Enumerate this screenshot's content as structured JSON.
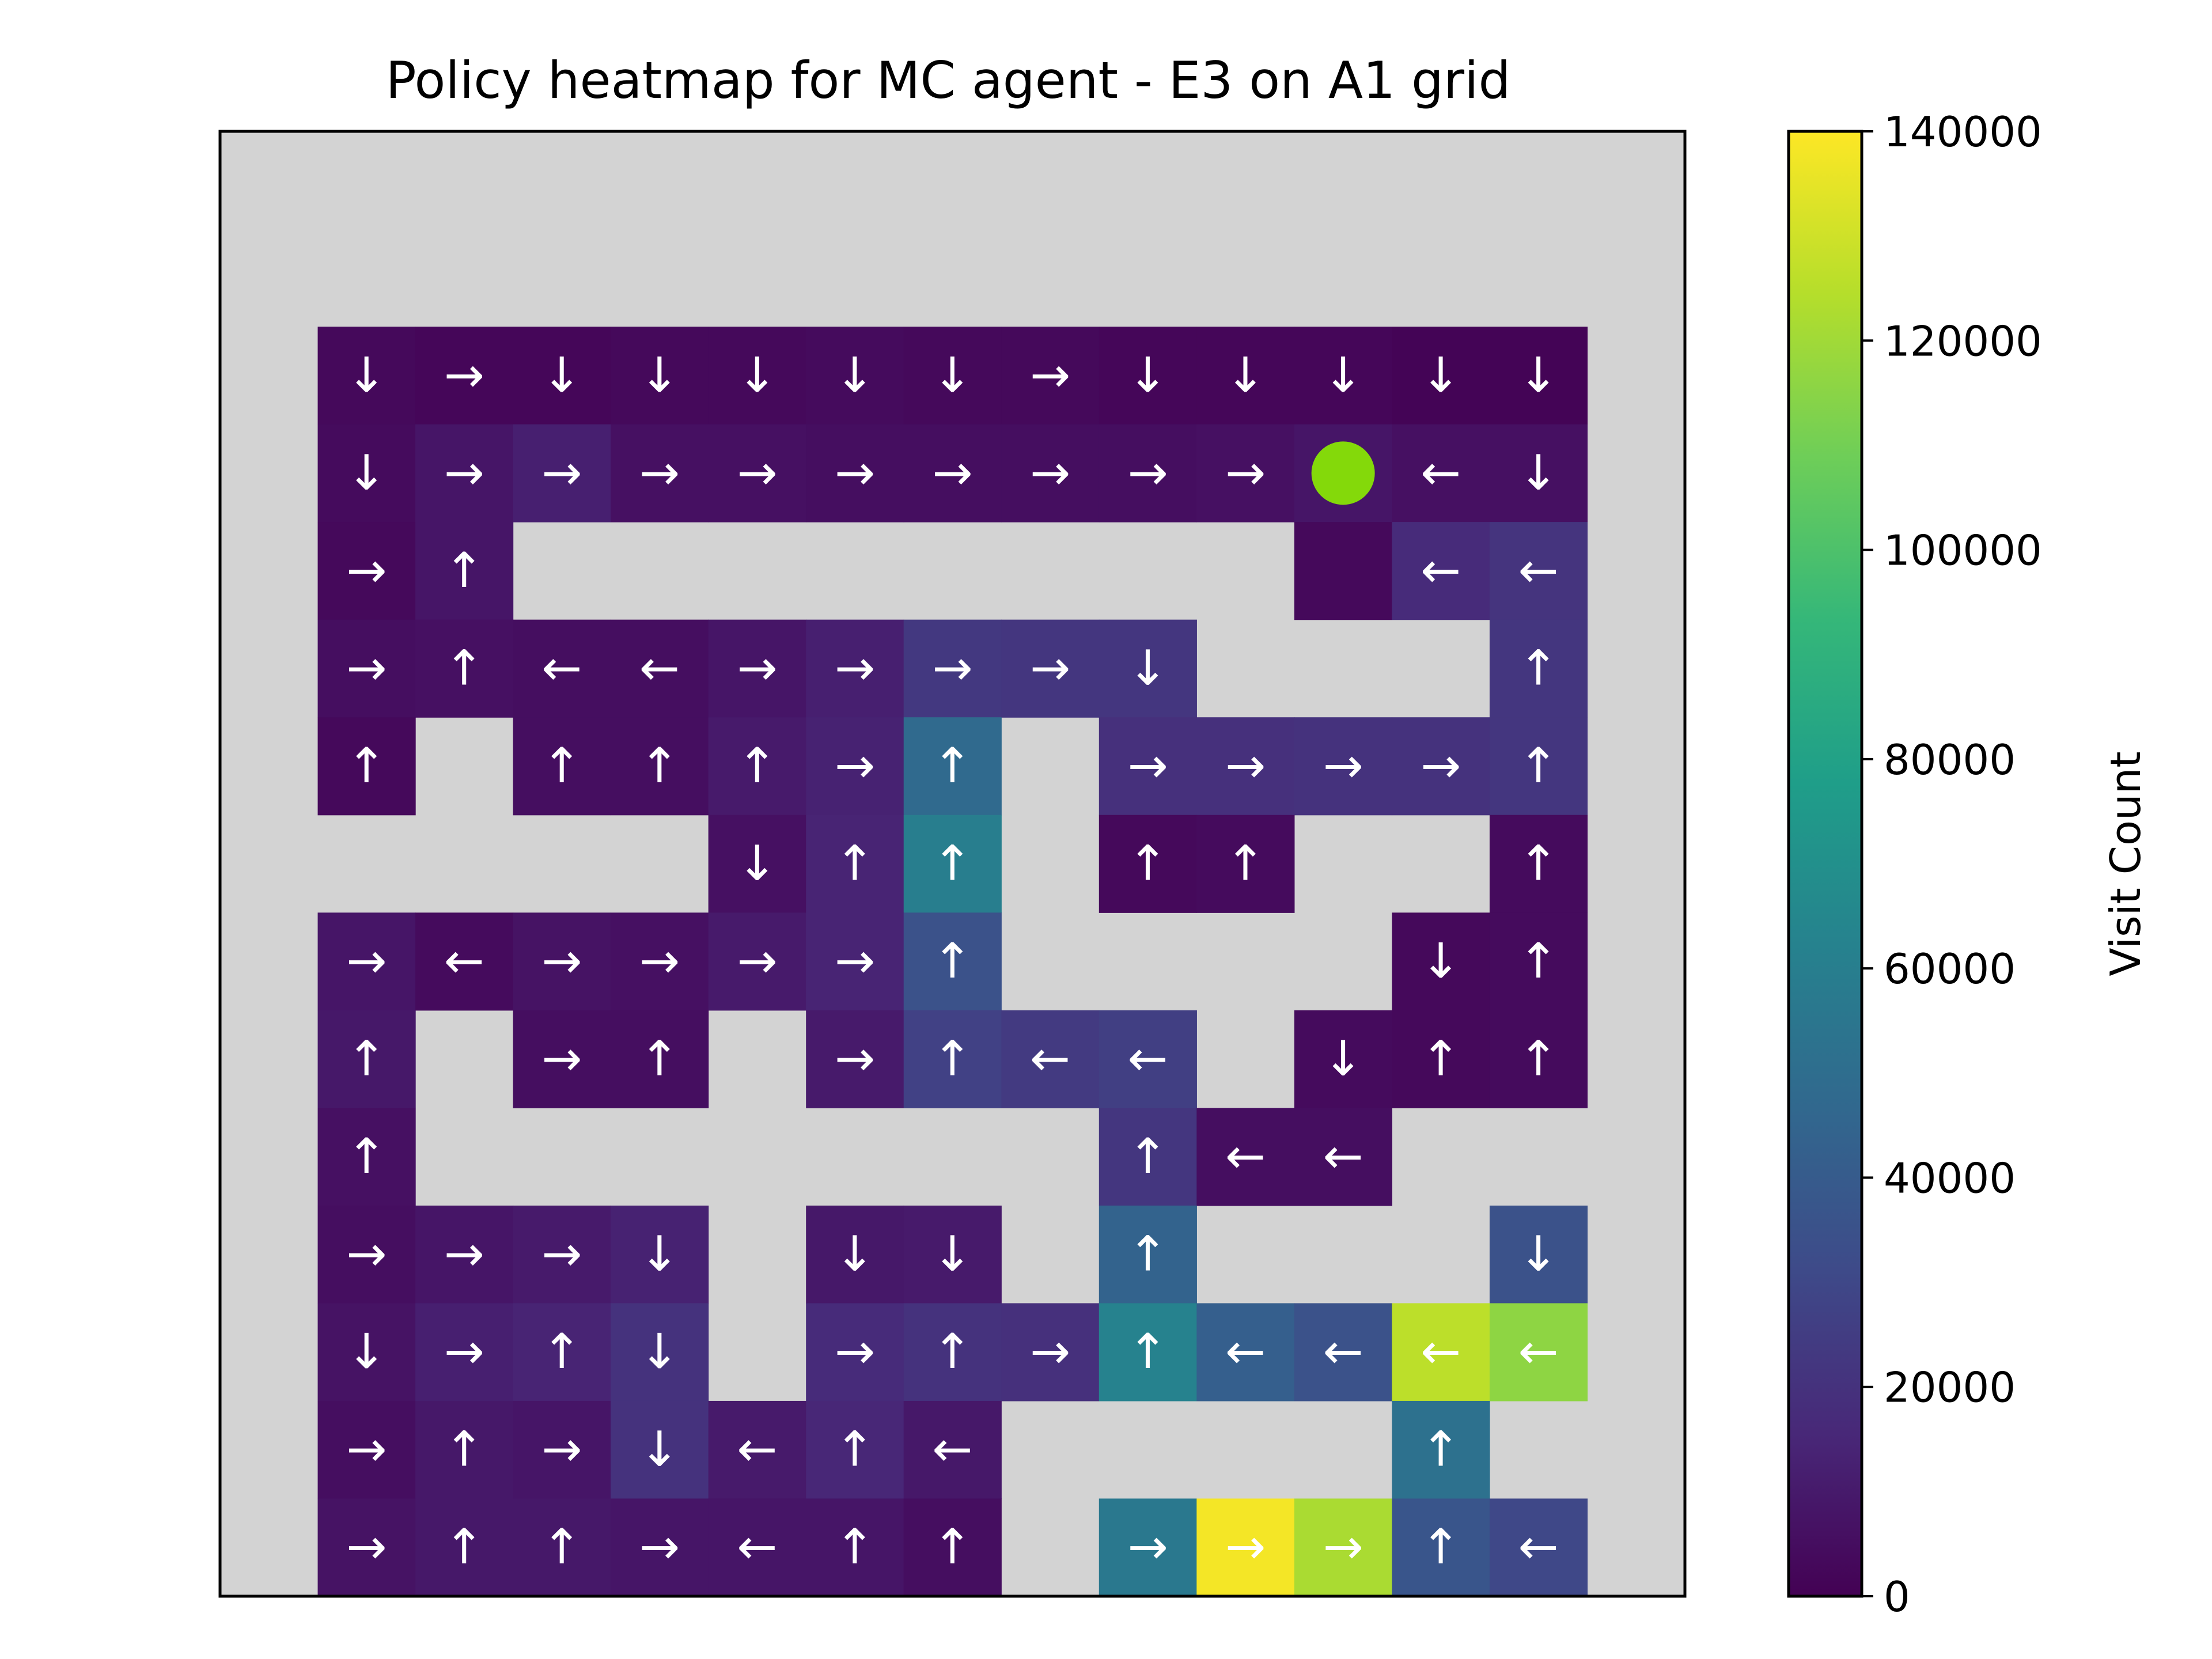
{
  "chart_data": {
    "type": "heatmap",
    "title": "Policy heatmap for MC agent - E3 on A1 grid",
    "xlabel": "",
    "ylabel": "",
    "rows": 15,
    "cols": 15,
    "wall_color": "#d3d3d3",
    "arrow_color": "#ffffff",
    "colormap": "viridis",
    "agent_marker": {
      "row": 3,
      "col": 11,
      "color": "#84d90a"
    },
    "colorbar": {
      "label": "Visit Count",
      "min": 0,
      "max": 140000,
      "ticks": [
        0,
        20000,
        40000,
        60000,
        80000,
        100000,
        120000,
        140000
      ]
    },
    "grid": [
      [
        null,
        null,
        null,
        null,
        null,
        null,
        null,
        null,
        null,
        null,
        null,
        null,
        null,
        null,
        null
      ],
      [
        null,
        null,
        null,
        null,
        null,
        null,
        null,
        null,
        null,
        null,
        null,
        null,
        null,
        null,
        null
      ],
      [
        null,
        {
          "a": "↓",
          "v": 3000
        },
        {
          "a": "→",
          "v": 2000
        },
        {
          "a": "↓",
          "v": 2000
        },
        {
          "a": "↓",
          "v": 3000
        },
        {
          "a": "↓",
          "v": 3000
        },
        {
          "a": "↓",
          "v": 4000
        },
        {
          "a": "↓",
          "v": 3000
        },
        {
          "a": "→",
          "v": 3000
        },
        {
          "a": "↓",
          "v": 2000
        },
        {
          "a": "↓",
          "v": 2000
        },
        {
          "a": "↓",
          "v": 2000
        },
        {
          "a": "↓",
          "v": 1000
        },
        {
          "a": "↓",
          "v": 1000
        },
        null
      ],
      [
        null,
        {
          "a": "↓",
          "v": 4000
        },
        {
          "a": "→",
          "v": 8000
        },
        {
          "a": "→",
          "v": 12000
        },
        {
          "a": "→",
          "v": 6000
        },
        {
          "a": "→",
          "v": 6000
        },
        {
          "a": "→",
          "v": 5000
        },
        {
          "a": "→",
          "v": 5000
        },
        {
          "a": "→",
          "v": 5000
        },
        {
          "a": "→",
          "v": 5000
        },
        {
          "a": "→",
          "v": 6000
        },
        {
          "a": "↓",
          "v": 8000
        },
        {
          "a": "←",
          "v": 6000
        },
        {
          "a": "↓",
          "v": 6000
        },
        null
      ],
      [
        null,
        {
          "a": "→",
          "v": 3000
        },
        {
          "a": "↑",
          "v": 8000
        },
        null,
        null,
        null,
        null,
        null,
        null,
        null,
        null,
        {
          "a": "",
          "v": 3000
        },
        {
          "a": "←",
          "v": 17000
        },
        {
          "a": "←",
          "v": 21000
        },
        null
      ],
      [
        null,
        {
          "a": "→",
          "v": 5000
        },
        {
          "a": "↑",
          "v": 6000
        },
        {
          "a": "←",
          "v": 5000
        },
        {
          "a": "←",
          "v": 5000
        },
        {
          "a": "→",
          "v": 8000
        },
        {
          "a": "→",
          "v": 12000
        },
        {
          "a": "→",
          "v": 23000
        },
        {
          "a": "→",
          "v": 22000
        },
        {
          "a": "↓",
          "v": 22000
        },
        null,
        null,
        null,
        {
          "a": "↑",
          "v": 22000
        },
        null
      ],
      [
        null,
        {
          "a": "↑",
          "v": 3000
        },
        null,
        {
          "a": "↑",
          "v": 5000
        },
        {
          "a": "↑",
          "v": 5000
        },
        {
          "a": "↑",
          "v": 10000
        },
        {
          "a": "→",
          "v": 13000
        },
        {
          "a": "↑",
          "v": 48000
        },
        null,
        {
          "a": "→",
          "v": 19000
        },
        {
          "a": "→",
          "v": 19000
        },
        {
          "a": "→",
          "v": 20000
        },
        {
          "a": "→",
          "v": 20000
        },
        {
          "a": "↑",
          "v": 22000
        },
        null
      ],
      [
        null,
        null,
        null,
        null,
        null,
        {
          "a": "↓",
          "v": 6000
        },
        {
          "a": "↑",
          "v": 14000
        },
        {
          "a": "↑",
          "v": 60000
        },
        null,
        {
          "a": "↑",
          "v": 3000
        },
        {
          "a": "↑",
          "v": 4000
        },
        null,
        null,
        {
          "a": "↑",
          "v": 4000
        },
        null
      ],
      [
        null,
        {
          "a": "→",
          "v": 8000
        },
        {
          "a": "←",
          "v": 4000
        },
        {
          "a": "→",
          "v": 7000
        },
        {
          "a": "→",
          "v": 6000
        },
        {
          "a": "→",
          "v": 10000
        },
        {
          "a": "→",
          "v": 14000
        },
        {
          "a": "↑",
          "v": 35000
        },
        null,
        null,
        null,
        null,
        {
          "a": "↓",
          "v": 3000
        },
        {
          "a": "↑",
          "v": 4000
        },
        null
      ],
      [
        null,
        {
          "a": "↑",
          "v": 9000
        },
        null,
        {
          "a": "→",
          "v": 5000
        },
        {
          "a": "↑",
          "v": 5000
        },
        null,
        {
          "a": "→",
          "v": 10000
        },
        {
          "a": "↑",
          "v": 27000
        },
        {
          "a": "←",
          "v": 24000
        },
        {
          "a": "←",
          "v": 26000
        },
        null,
        {
          "a": "↓",
          "v": 4000
        },
        {
          "a": "↑",
          "v": 3000
        },
        {
          "a": "↑",
          "v": 4000
        },
        null
      ],
      [
        null,
        {
          "a": "↑",
          "v": 6000
        },
        null,
        null,
        null,
        null,
        null,
        null,
        null,
        {
          "a": "↑",
          "v": 22000
        },
        {
          "a": "←",
          "v": 5000
        },
        {
          "a": "←",
          "v": 5000
        },
        null,
        null,
        null
      ],
      [
        null,
        {
          "a": "→",
          "v": 5000
        },
        {
          "a": "→",
          "v": 8000
        },
        {
          "a": "→",
          "v": 10000
        },
        {
          "a": "↓",
          "v": 13000
        },
        null,
        {
          "a": "↓",
          "v": 9000
        },
        {
          "a": "↓",
          "v": 10000
        },
        null,
        {
          "a": "↑",
          "v": 44000
        },
        null,
        null,
        null,
        {
          "a": "↓",
          "v": 35000
        },
        null
      ],
      [
        null,
        {
          "a": "↓",
          "v": 7000
        },
        {
          "a": "→",
          "v": 12000
        },
        {
          "a": "↑",
          "v": 14000
        },
        {
          "a": "↓",
          "v": 20000
        },
        null,
        {
          "a": "→",
          "v": 17000
        },
        {
          "a": "↑",
          "v": 20000
        },
        {
          "a": "→",
          "v": 19000
        },
        {
          "a": "↑",
          "v": 62000
        },
        {
          "a": "←",
          "v": 42000
        },
        {
          "a": "←",
          "v": 35000
        },
        {
          "a": "←",
          "v": 126000
        },
        {
          "a": "←",
          "v": 116000
        },
        null
      ],
      [
        null,
        {
          "a": "→",
          "v": 5000
        },
        {
          "a": "↑",
          "v": 9000
        },
        {
          "a": "→",
          "v": 8000
        },
        {
          "a": "↓",
          "v": 20000
        },
        {
          "a": "←",
          "v": 10000
        },
        {
          "a": "↑",
          "v": 15000
        },
        {
          "a": "←",
          "v": 9000
        },
        null,
        null,
        null,
        null,
        {
          "a": "↑",
          "v": 52000
        },
        null,
        null
      ],
      [
        null,
        {
          "a": "→",
          "v": 7000
        },
        {
          "a": "↑",
          "v": 9000
        },
        {
          "a": "↑",
          "v": 9000
        },
        {
          "a": "→",
          "v": 8000
        },
        {
          "a": "←",
          "v": 8000
        },
        {
          "a": "↑",
          "v": 8000
        },
        {
          "a": "↑",
          "v": 5000
        },
        null,
        {
          "a": "→",
          "v": 56000
        },
        {
          "a": "→",
          "v": 138000
        },
        {
          "a": "→",
          "v": 122000
        },
        {
          "a": "↑",
          "v": 37000
        },
        {
          "a": "←",
          "v": 30000
        },
        null
      ],
      [
        null,
        null,
        null,
        null,
        null,
        null,
        null,
        null,
        null,
        null,
        null,
        null,
        null,
        null,
        null
      ]
    ]
  }
}
